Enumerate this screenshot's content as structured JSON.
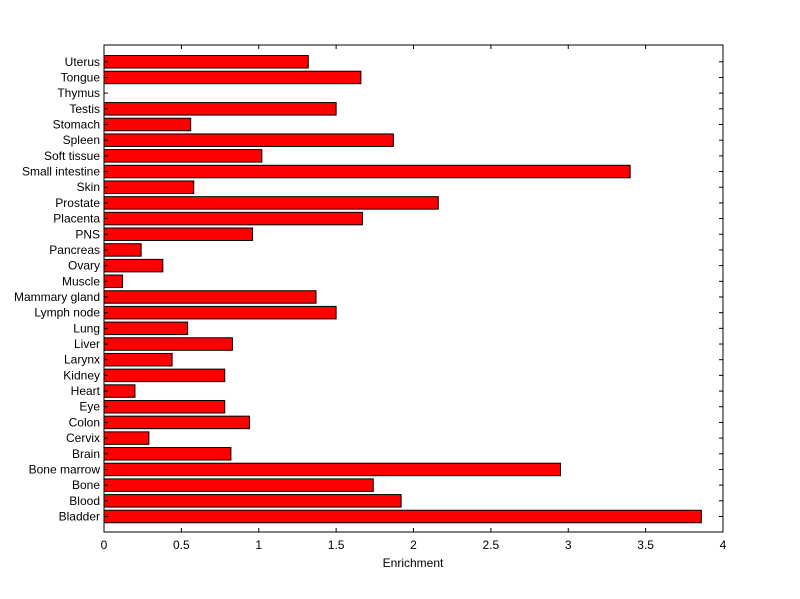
{
  "chart_data": {
    "type": "bar",
    "orientation": "horizontal",
    "categories": [
      "Bladder",
      "Blood",
      "Bone",
      "Bone marrow",
      "Brain",
      "Cervix",
      "Colon",
      "Eye",
      "Heart",
      "Kidney",
      "Larynx",
      "Liver",
      "Lung",
      "Lymph node",
      "Mammary gland",
      "Muscle",
      "Ovary",
      "Pancreas",
      "PNS",
      "Placenta",
      "Prostate",
      "Skin",
      "Small intestine",
      "Soft tissue",
      "Spleen",
      "Stomach",
      "Testis",
      "Thymus",
      "Tongue",
      "Uterus"
    ],
    "values": [
      3.86,
      1.92,
      1.74,
      2.95,
      0.82,
      0.29,
      0.94,
      0.78,
      0.2,
      0.78,
      0.44,
      0.83,
      0.54,
      1.5,
      1.37,
      0.12,
      0.38,
      0.24,
      0.96,
      1.67,
      2.16,
      0.58,
      3.4,
      1.02,
      1.87,
      0.56,
      1.5,
      0.0,
      1.66,
      1.32
    ],
    "xlabel": "Enrichment",
    "ylabel": "",
    "title": "",
    "xlim": [
      0,
      4
    ],
    "xticks": [
      "0",
      "0.5",
      "1",
      "1.5",
      "2",
      "2.5",
      "3",
      "3.5",
      "4"
    ],
    "grid": false,
    "bar_color": "#ff0000",
    "bar_edge_color": "#000000"
  }
}
